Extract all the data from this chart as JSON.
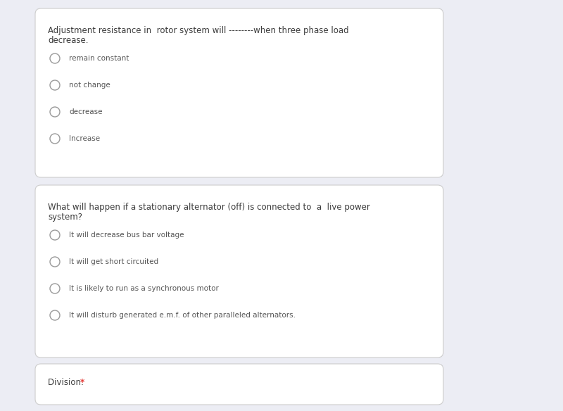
{
  "background_color": "#ecedf4",
  "card_color": "#ffffff",
  "card_border_color": "#cccccc",
  "q1_text_line1": "Adjustment resistance in  rotor system will --------when three phase load",
  "q1_text_line2": "decrease.",
  "q1_options": [
    "remain constant",
    "not change",
    "decrease",
    "Increase"
  ],
  "q2_text_line1": "What will happen if a stationary alternator (off) is connected to  a  live power",
  "q2_text_line2": "system?",
  "q2_options": [
    "It will decrease bus bar voltage",
    "It will get short circuited",
    "It is likely to run as a synchronous motor",
    "It will disturb generated e.m.f. of other paralleled alternators."
  ],
  "q3_label": "Division: ",
  "q3_asterisk": "*",
  "text_color": "#3c3c3c",
  "option_text_color": "#555555",
  "asterisk_color": "#e53935",
  "circle_edge_color": "#999999",
  "circle_fill_color": "#ffffff",
  "question_fontsize": 8.5,
  "option_fontsize": 7.5,
  "division_fontsize": 8.5,
  "fig_width": 8.0,
  "fig_height": 5.84
}
